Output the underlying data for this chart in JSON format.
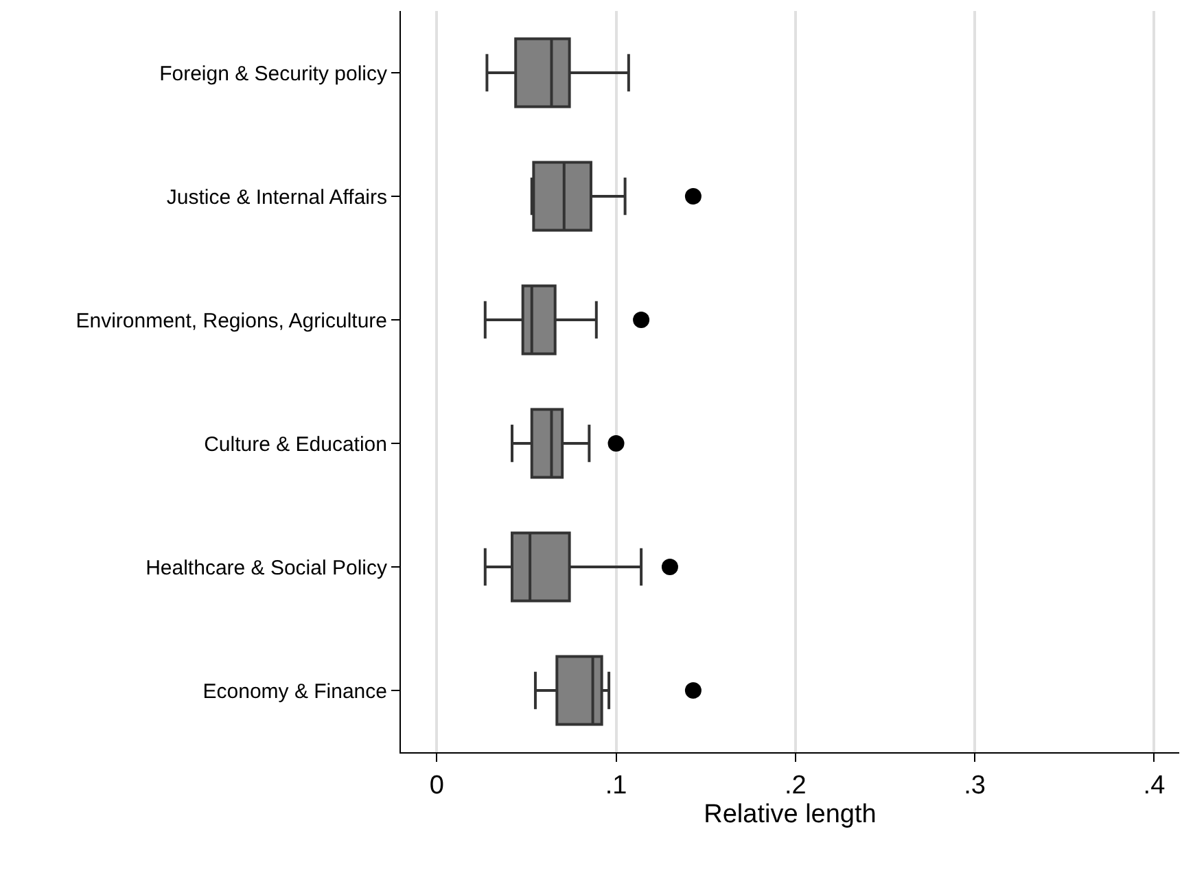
{
  "chart_data": {
    "type": "box",
    "orientation": "horizontal",
    "xlabel": "Relative length",
    "categories": [
      "Foreign & Security policy",
      "Justice & Internal Affairs",
      "Environment, Regions, Agriculture",
      "Culture & Education",
      "Healthcare & Social Policy",
      "Economy & Finance"
    ],
    "boxes": [
      {
        "low": 0.028,
        "q1": 0.044,
        "median": 0.064,
        "q3": 0.074,
        "high": 0.107
      },
      {
        "low": 0.053,
        "q1": 0.054,
        "median": 0.071,
        "q3": 0.086,
        "high": 0.105,
        "outliers": [
          0.143
        ]
      },
      {
        "low": 0.027,
        "q1": 0.048,
        "median": 0.053,
        "q3": 0.066,
        "high": 0.089,
        "outliers": [
          0.114
        ]
      },
      {
        "low": 0.042,
        "q1": 0.053,
        "median": 0.064,
        "q3": 0.07,
        "high": 0.085,
        "outliers": [
          0.1
        ]
      },
      {
        "low": 0.027,
        "q1": 0.042,
        "median": 0.052,
        "q3": 0.074,
        "high": 0.114,
        "outliers": [
          0.13
        ]
      },
      {
        "low": 0.055,
        "q1": 0.067,
        "median": 0.087,
        "q3": 0.092,
        "high": 0.096,
        "outliers": [
          0.143
        ]
      }
    ],
    "color": "#808080",
    "xlim": [
      -0.02,
      0.414
    ],
    "xticks": [
      0,
      {
        "value": 0.1,
        "label": ".1"
      },
      {
        "value": 0.2,
        "label": ".2"
      },
      {
        "value": 0.3,
        "label": ".3"
      },
      {
        "value": 0.4,
        "label": ".4"
      }
    ],
    "grid": "x"
  }
}
